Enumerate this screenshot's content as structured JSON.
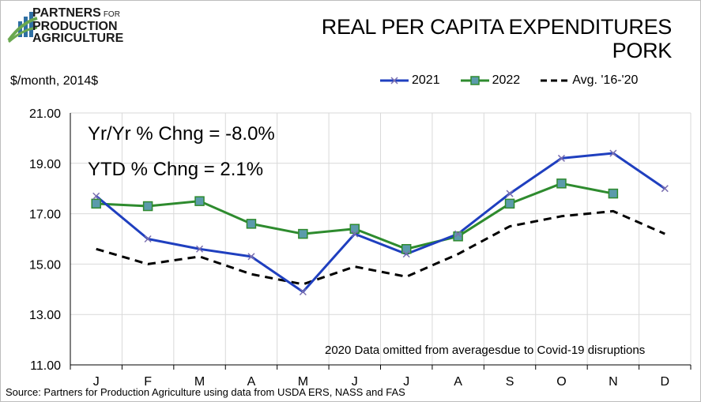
{
  "logo": {
    "line1": "PARTNERS",
    "line1_small": "FOR",
    "line2": "PRODUCTION",
    "line3": "AGRICULTURE"
  },
  "title_line1": "REAL PER CAPITA EXPENDITURES",
  "title_line2": "PORK",
  "ylabel": "$/month, 2014$",
  "annotations": {
    "yoy": "Yr/Yr % Chng = -8.0%",
    "ytd": "YTD % Chng = 2.1%",
    "note": "2020 Data omitted from averagesdue to Covid-19 disruptions"
  },
  "source": "Source: Partners for Production Agriculture using data from USDA ERS, NASS and FAS",
  "colors": {
    "s2021": "#1f3fbf",
    "s2022": "#2e8b2e",
    "marker2022": "#5b9bab",
    "avg": "#000000",
    "grid": "#d9d9d9",
    "logo_blue": "#2e6fa3",
    "logo_green": "#6aa84f"
  },
  "chart_data": {
    "type": "line",
    "categories": [
      "J",
      "F",
      "M",
      "A",
      "M",
      "J",
      "J",
      "A",
      "S",
      "O",
      "N",
      "D"
    ],
    "ylim": [
      11,
      21
    ],
    "yticks": [
      "11.00",
      "13.00",
      "15.00",
      "17.00",
      "19.00",
      "21.00"
    ],
    "ytick_values": [
      11,
      13,
      15,
      17,
      19,
      21
    ],
    "grid": true,
    "legend_position": "top-right",
    "series": [
      {
        "name": "2021",
        "values": [
          17.7,
          16.0,
          15.6,
          15.3,
          13.9,
          16.2,
          15.4,
          16.2,
          17.8,
          19.2,
          19.4,
          18.0
        ]
      },
      {
        "name": "2022",
        "values": [
          17.4,
          17.3,
          17.5,
          16.6,
          16.2,
          16.4,
          15.6,
          16.1,
          17.4,
          18.2,
          17.8,
          null
        ]
      },
      {
        "name": "Avg. '16-'20",
        "values": [
          15.6,
          15.0,
          15.3,
          14.6,
          14.2,
          14.9,
          14.5,
          15.4,
          16.5,
          16.9,
          17.1,
          16.2
        ]
      }
    ]
  }
}
